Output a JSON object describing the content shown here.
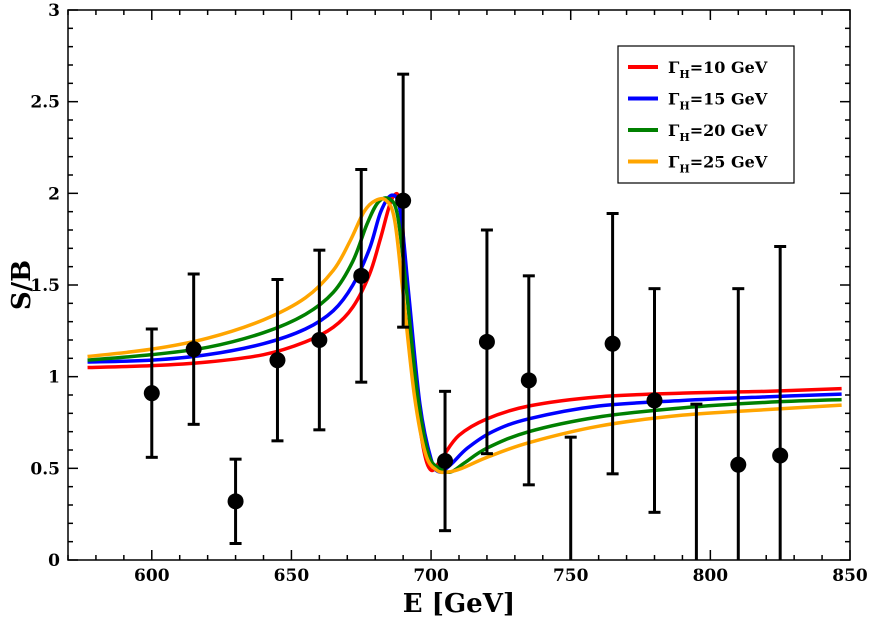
{
  "chart_data": {
    "type": "line",
    "title": "",
    "xlabel": "E [GeV]",
    "ylabel": "S/B",
    "xlim": [
      570,
      850
    ],
    "ylim": [
      0,
      3
    ],
    "xticks": [
      600,
      650,
      700,
      750,
      800,
      850
    ],
    "xtick_labels": [
      "600",
      "650",
      "700",
      "750",
      "800",
      "850"
    ],
    "yticks": [
      0,
      0.5,
      1,
      1.5,
      2,
      2.5,
      3
    ],
    "ytick_labels": [
      "0",
      "0.5",
      "1",
      "1.5",
      "2",
      "2.5",
      "3"
    ],
    "legend_position": "top-right",
    "series": [
      {
        "name": "Γ_H=10 GeV",
        "legend_main": "Γ",
        "legend_sub": "H",
        "legend_rest": "=10 GeV",
        "color": "#ff0000",
        "x": [
          577,
          600,
          620,
          640,
          655,
          665,
          672,
          678,
          682,
          686,
          689,
          691,
          694,
          697,
          700,
          704,
          710,
          720,
          735,
          760,
          790,
          820,
          847
        ],
        "y": [
          1.05,
          1.06,
          1.08,
          1.12,
          1.19,
          1.27,
          1.38,
          1.56,
          1.76,
          1.97,
          1.95,
          1.55,
          1.0,
          0.63,
          0.49,
          0.56,
          0.68,
          0.77,
          0.84,
          0.89,
          0.91,
          0.92,
          0.935
        ]
      },
      {
        "name": "Γ_H=15 GeV",
        "legend_main": "Γ",
        "legend_sub": "H",
        "legend_rest": "=15 GeV",
        "color": "#0000ff",
        "x": [
          577,
          600,
          620,
          640,
          655,
          665,
          672,
          678,
          682,
          686,
          689,
          692,
          696,
          700,
          703,
          707,
          713,
          722,
          735,
          760,
          790,
          820,
          847
        ],
        "y": [
          1.08,
          1.09,
          1.12,
          1.18,
          1.26,
          1.36,
          1.5,
          1.7,
          1.9,
          1.99,
          1.9,
          1.45,
          0.85,
          0.55,
          0.48,
          0.52,
          0.61,
          0.7,
          0.77,
          0.84,
          0.87,
          0.89,
          0.905
        ]
      },
      {
        "name": "Γ_H=20 GeV",
        "legend_main": "Γ",
        "legend_sub": "H",
        "legend_rest": "=20 GeV",
        "color": "#008000",
        "x": [
          577,
          600,
          620,
          640,
          655,
          665,
          672,
          677,
          681,
          685,
          688,
          691,
          695,
          699,
          703,
          707,
          712,
          720,
          735,
          760,
          790,
          820,
          847
        ],
        "y": [
          1.09,
          1.12,
          1.16,
          1.24,
          1.34,
          1.46,
          1.63,
          1.83,
          1.95,
          1.97,
          1.88,
          1.5,
          0.92,
          0.58,
          0.5,
          0.48,
          0.53,
          0.61,
          0.7,
          0.78,
          0.83,
          0.86,
          0.875
        ]
      },
      {
        "name": "Γ_H=25 GeV",
        "legend_main": "Γ",
        "legend_sub": "H",
        "legend_rest": "=25 GeV",
        "color": "#ffa500",
        "x": [
          577,
          600,
          620,
          640,
          655,
          665,
          671,
          676,
          680,
          684,
          687,
          690,
          694,
          698,
          702,
          706,
          711,
          720,
          735,
          760,
          790,
          820,
          847
        ],
        "y": [
          1.11,
          1.15,
          1.21,
          1.31,
          1.43,
          1.58,
          1.74,
          1.9,
          1.96,
          1.96,
          1.85,
          1.45,
          0.9,
          0.58,
          0.49,
          0.48,
          0.5,
          0.56,
          0.64,
          0.73,
          0.79,
          0.82,
          0.845
        ]
      }
    ],
    "data_points": {
      "name": "data",
      "color": "#000000",
      "x": [
        600,
        615,
        630,
        645,
        660,
        675,
        690,
        705,
        720,
        735,
        750,
        765,
        780,
        795,
        810,
        825
      ],
      "y": [
        0.91,
        1.15,
        0.32,
        1.09,
        1.2,
        1.55,
        1.96,
        0.54,
        1.19,
        0.98,
        0.0,
        1.18,
        0.87,
        0.0,
        0.52,
        0.57
      ],
      "err_low": [
        0.56,
        0.74,
        0.09,
        0.65,
        0.71,
        0.97,
        1.27,
        0.16,
        0.58,
        0.41,
        0.0,
        0.47,
        0.26,
        0.0,
        0.0,
        0.0
      ],
      "err_high": [
        1.26,
        1.56,
        0.55,
        1.53,
        1.69,
        2.13,
        2.65,
        0.92,
        1.8,
        1.55,
        0.67,
        1.89,
        1.48,
        0.85,
        1.48,
        1.71
      ]
    }
  }
}
